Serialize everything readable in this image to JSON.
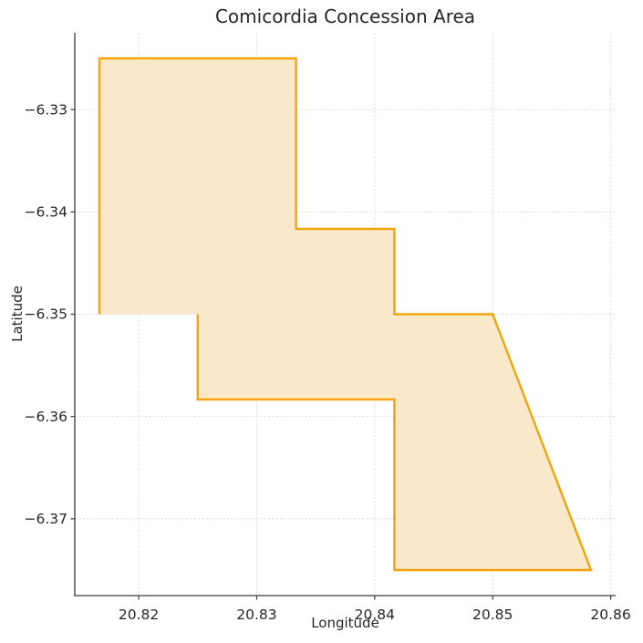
{
  "chart_data": {
    "type": "area",
    "shape": "filled-polygon",
    "title": "Comicordia Concession Area",
    "xlabel": "Longitude",
    "ylabel": "Latitude",
    "xlim": [
      20.814583,
      20.860417
    ],
    "ylim": [
      -6.3775,
      -6.3225
    ],
    "xticks": [
      20.82,
      20.83,
      20.84,
      20.85,
      20.86
    ],
    "yticks": [
      -6.33,
      -6.34,
      -6.35,
      -6.36,
      -6.37
    ],
    "xtick_labels": [
      "20.82",
      "20.83",
      "20.84",
      "20.85",
      "20.86"
    ],
    "ytick_labels": [
      "−6.33",
      "−6.34",
      "−6.35",
      "−6.36",
      "−6.37"
    ],
    "grid": true,
    "grid_style": "dashed",
    "polygon_vertices_lon_lat": [
      [
        20.816667,
        -6.35
      ],
      [
        20.816667,
        -6.325
      ],
      [
        20.833333,
        -6.325
      ],
      [
        20.833333,
        -6.341667
      ],
      [
        20.841667,
        -6.341667
      ],
      [
        20.841667,
        -6.35
      ],
      [
        20.85,
        -6.35
      ],
      [
        20.858333,
        -6.375
      ],
      [
        20.841667,
        -6.375
      ],
      [
        20.841667,
        -6.358333
      ],
      [
        20.825,
        -6.358333
      ],
      [
        20.825,
        -6.35
      ]
    ],
    "outline_closed": false,
    "colors": {
      "polygon_edge": "#F0A40E",
      "polygon_fill": "#F9E8C9",
      "grid": "#DEDEDE",
      "spine": "#3B3B3B",
      "tick": "#3B3B3B",
      "text": "#262626"
    }
  }
}
